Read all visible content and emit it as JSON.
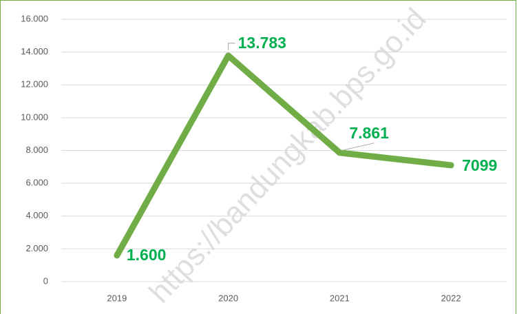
{
  "chart_data": {
    "type": "line",
    "categories": [
      "2019",
      "2020",
      "2021",
      "2022"
    ],
    "series": [
      {
        "color": "#70ad47",
        "values": [
          1600,
          13783,
          7861,
          7099
        ],
        "value_labels": [
          "1.600",
          "13.783",
          "7.861",
          "7099"
        ]
      }
    ],
    "ylim": [
      0,
      16000
    ],
    "yticks": [
      0,
      {
        "value": 2000,
        "label": "2.000"
      },
      {
        "value": 4000,
        "label": "4.000"
      },
      {
        "value": 6000,
        "label": "6.000"
      },
      {
        "value": 8000,
        "label": "8.000"
      },
      {
        "value": 10000,
        "label": "10.000"
      },
      {
        "value": 12000,
        "label": "12.000"
      },
      {
        "value": 14000,
        "label": "14.000"
      },
      {
        "value": 16000,
        "label": "16.000"
      }
    ],
    "grid": true,
    "label_color": "#00b050",
    "watermark": "https://bandungkab.bps.go.id"
  }
}
